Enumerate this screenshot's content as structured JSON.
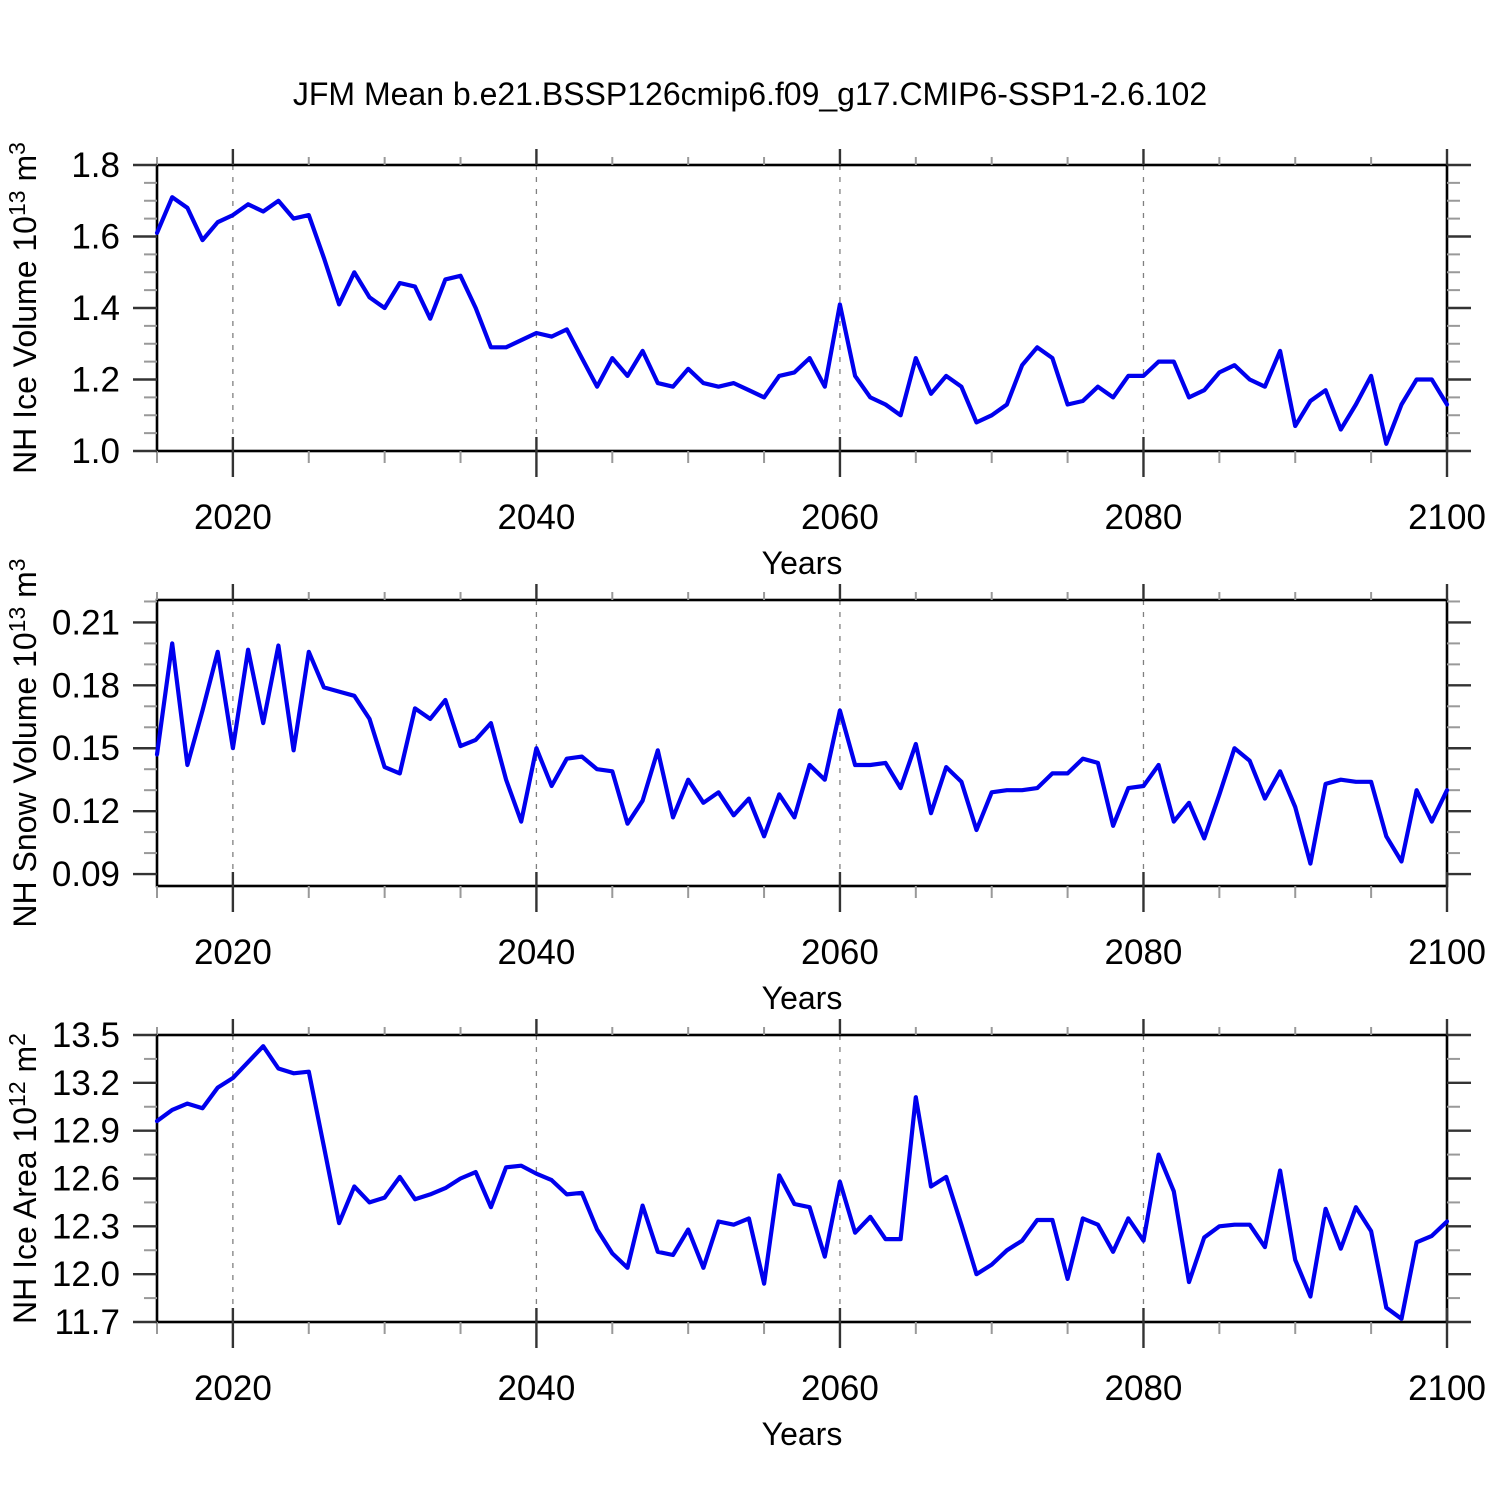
{
  "title": "JFM Mean b.e21.BSSP126cmip6.f09_g17.CMIP6-SSP1-2.6.102",
  "x_axis": {
    "label": "Years",
    "xlim": [
      2015,
      2100
    ],
    "major_ticks": [
      2020,
      2040,
      2060,
      2080,
      2100
    ],
    "minor_step": 5,
    "grid_years": [
      2020,
      2040,
      2060,
      2080
    ]
  },
  "colors": {
    "line": "#0000ee",
    "grid": "#808080",
    "major_tick": "#333333",
    "minor_tick": "#999999",
    "frame": "#000000"
  },
  "chart_data": [
    {
      "type": "line",
      "name": "nh-ice-volume",
      "ylabel_parts": [
        {
          "t": "NH Ice Volume 10"
        },
        {
          "t": "13",
          "sup": 1
        },
        {
          "t": " m"
        },
        {
          "t": "3",
          "sup": 1
        }
      ],
      "ylim": [
        1.0,
        1.8
      ],
      "frame_ylim": [
        1.0,
        1.8
      ],
      "y_ticks": [
        {
          "v": 1.0,
          "label": "1.0"
        },
        {
          "v": 1.2,
          "label": "1.2"
        },
        {
          "v": 1.4,
          "label": "1.4"
        },
        {
          "v": 1.6,
          "label": "1.6"
        },
        {
          "v": 1.8,
          "label": "1.8"
        }
      ],
      "y_minor_step": 0.05,
      "x": [
        2015,
        2016,
        2017,
        2018,
        2019,
        2020,
        2021,
        2022,
        2023,
        2024,
        2025,
        2026,
        2027,
        2028,
        2029,
        2030,
        2031,
        2032,
        2033,
        2034,
        2035,
        2036,
        2037,
        2038,
        2039,
        2040,
        2041,
        2042,
        2043,
        2044,
        2045,
        2046,
        2047,
        2048,
        2049,
        2050,
        2051,
        2052,
        2053,
        2054,
        2055,
        2056,
        2057,
        2058,
        2059,
        2060,
        2061,
        2062,
        2063,
        2064,
        2065,
        2066,
        2067,
        2068,
        2069,
        2070,
        2071,
        2072,
        2073,
        2074,
        2075,
        2076,
        2077,
        2078,
        2079,
        2080,
        2081,
        2082,
        2083,
        2084,
        2085,
        2086,
        2087,
        2088,
        2089,
        2090,
        2091,
        2092,
        2093,
        2094,
        2095,
        2096,
        2097,
        2098,
        2099,
        2100
      ],
      "values": [
        1.61,
        1.71,
        1.68,
        1.59,
        1.64,
        1.66,
        1.69,
        1.67,
        1.7,
        1.65,
        1.66,
        1.54,
        1.41,
        1.5,
        1.43,
        1.4,
        1.47,
        1.46,
        1.37,
        1.48,
        1.49,
        1.4,
        1.29,
        1.29,
        1.31,
        1.33,
        1.32,
        1.34,
        1.26,
        1.18,
        1.26,
        1.21,
        1.28,
        1.19,
        1.18,
        1.23,
        1.19,
        1.18,
        1.19,
        1.17,
        1.15,
        1.21,
        1.22,
        1.26,
        1.18,
        1.41,
        1.21,
        1.15,
        1.13,
        1.1,
        1.26,
        1.16,
        1.21,
        1.18,
        1.08,
        1.1,
        1.13,
        1.24,
        1.29,
        1.26,
        1.13,
        1.14,
        1.18,
        1.15,
        1.21,
        1.21,
        1.25,
        1.25,
        1.15,
        1.17,
        1.22,
        1.24,
        1.2,
        1.18,
        1.28,
        1.07,
        1.14,
        1.17,
        1.06,
        1.13,
        1.21,
        1.02,
        1.13,
        1.2,
        1.2,
        1.13
      ]
    },
    {
      "type": "line",
      "name": "nh-snow-volume",
      "ylabel_parts": [
        {
          "t": "NH Snow Volume 10"
        },
        {
          "t": "13",
          "sup": 1
        },
        {
          "t": " m"
        },
        {
          "t": "3",
          "sup": 1
        }
      ],
      "ylim": [
        0.09,
        0.21
      ],
      "frame_ylim": [
        0.0843,
        0.2207
      ],
      "y_ticks": [
        {
          "v": 0.09,
          "label": "0.09"
        },
        {
          "v": 0.12,
          "label": "0.12"
        },
        {
          "v": 0.15,
          "label": "0.15"
        },
        {
          "v": 0.18,
          "label": "0.18"
        },
        {
          "v": 0.21,
          "label": "0.21"
        }
      ],
      "y_minor_step": 0.01,
      "x": [
        2015,
        2016,
        2017,
        2018,
        2019,
        2020,
        2021,
        2022,
        2023,
        2024,
        2025,
        2026,
        2027,
        2028,
        2029,
        2030,
        2031,
        2032,
        2033,
        2034,
        2035,
        2036,
        2037,
        2038,
        2039,
        2040,
        2041,
        2042,
        2043,
        2044,
        2045,
        2046,
        2047,
        2048,
        2049,
        2050,
        2051,
        2052,
        2053,
        2054,
        2055,
        2056,
        2057,
        2058,
        2059,
        2060,
        2061,
        2062,
        2063,
        2064,
        2065,
        2066,
        2067,
        2068,
        2069,
        2070,
        2071,
        2072,
        2073,
        2074,
        2075,
        2076,
        2077,
        2078,
        2079,
        2080,
        2081,
        2082,
        2083,
        2084,
        2085,
        2086,
        2087,
        2088,
        2089,
        2090,
        2091,
        2092,
        2093,
        2094,
        2095,
        2096,
        2097,
        2098,
        2099,
        2100
      ],
      "values": [
        0.147,
        0.2,
        0.142,
        0.168,
        0.196,
        0.15,
        0.197,
        0.162,
        0.199,
        0.149,
        0.196,
        0.179,
        0.177,
        0.175,
        0.164,
        0.141,
        0.138,
        0.169,
        0.164,
        0.173,
        0.151,
        0.154,
        0.162,
        0.135,
        0.115,
        0.15,
        0.132,
        0.145,
        0.146,
        0.14,
        0.139,
        0.114,
        0.125,
        0.149,
        0.117,
        0.135,
        0.124,
        0.129,
        0.118,
        0.126,
        0.108,
        0.128,
        0.117,
        0.142,
        0.135,
        0.168,
        0.142,
        0.142,
        0.143,
        0.131,
        0.152,
        0.119,
        0.141,
        0.134,
        0.111,
        0.129,
        0.13,
        0.13,
        0.131,
        0.138,
        0.138,
        0.145,
        0.143,
        0.113,
        0.131,
        0.132,
        0.142,
        0.115,
        0.124,
        0.107,
        0.128,
        0.15,
        0.144,
        0.126,
        0.139,
        0.122,
        0.095,
        0.133,
        0.135,
        0.134,
        0.134,
        0.108,
        0.096,
        0.13,
        0.115,
        0.13
      ]
    },
    {
      "type": "line",
      "name": "nh-ice-area",
      "ylabel_parts": [
        {
          "t": "NH Ice Area 10"
        },
        {
          "t": "12",
          "sup": 1
        },
        {
          "t": " m"
        },
        {
          "t": "2",
          "sup": 1
        }
      ],
      "ylim": [
        11.7,
        13.5
      ],
      "frame_ylim": [
        11.7,
        13.5
      ],
      "y_ticks": [
        {
          "v": 11.7,
          "label": "11.7"
        },
        {
          "v": 12.0,
          "label": "12.0"
        },
        {
          "v": 12.3,
          "label": "12.3"
        },
        {
          "v": 12.6,
          "label": "12.6"
        },
        {
          "v": 12.9,
          "label": "12.9"
        },
        {
          "v": 13.2,
          "label": "13.2"
        },
        {
          "v": 13.5,
          "label": "13.5"
        }
      ],
      "y_minor_step": 0.15,
      "x": [
        2015,
        2016,
        2017,
        2018,
        2019,
        2020,
        2021,
        2022,
        2023,
        2024,
        2025,
        2026,
        2027,
        2028,
        2029,
        2030,
        2031,
        2032,
        2033,
        2034,
        2035,
        2036,
        2037,
        2038,
        2039,
        2040,
        2041,
        2042,
        2043,
        2044,
        2045,
        2046,
        2047,
        2048,
        2049,
        2050,
        2051,
        2052,
        2053,
        2054,
        2055,
        2056,
        2057,
        2058,
        2059,
        2060,
        2061,
        2062,
        2063,
        2064,
        2065,
        2066,
        2067,
        2068,
        2069,
        2070,
        2071,
        2072,
        2073,
        2074,
        2075,
        2076,
        2077,
        2078,
        2079,
        2080,
        2081,
        2082,
        2083,
        2084,
        2085,
        2086,
        2087,
        2088,
        2089,
        2090,
        2091,
        2092,
        2093,
        2094,
        2095,
        2096,
        2097,
        2098,
        2099,
        2100
      ],
      "values": [
        12.96,
        13.03,
        13.07,
        13.04,
        13.17,
        13.23,
        13.33,
        13.43,
        13.29,
        13.26,
        13.27,
        12.8,
        12.32,
        12.55,
        12.45,
        12.48,
        12.61,
        12.47,
        12.5,
        12.54,
        12.6,
        12.64,
        12.42,
        12.67,
        12.68,
        12.63,
        12.59,
        12.5,
        12.51,
        12.28,
        12.13,
        12.04,
        12.43,
        12.14,
        12.12,
        12.28,
        12.04,
        12.33,
        12.31,
        12.35,
        11.94,
        12.62,
        12.44,
        12.42,
        12.11,
        12.58,
        12.26,
        12.36,
        12.22,
        12.22,
        13.11,
        12.55,
        12.61,
        12.31,
        12.0,
        12.06,
        12.15,
        12.21,
        12.34,
        12.34,
        11.97,
        12.35,
        12.31,
        12.14,
        12.35,
        12.21,
        12.75,
        12.52,
        11.95,
        12.23,
        12.3,
        12.31,
        12.31,
        12.17,
        12.65,
        12.09,
        11.86,
        12.41,
        12.16,
        12.42,
        12.27,
        11.79,
        11.72,
        12.2,
        12.24,
        12.33
      ]
    }
  ]
}
